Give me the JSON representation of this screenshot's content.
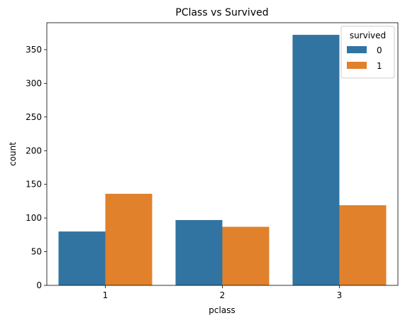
{
  "chart_data": {
    "type": "bar",
    "title": "PClass vs Survived",
    "xlabel": "pclass",
    "ylabel": "count",
    "categories": [
      "1",
      "2",
      "3"
    ],
    "series": [
      {
        "name": "0",
        "values": [
          80,
          97,
          372
        ],
        "color": "#3274a1"
      },
      {
        "name": "1",
        "values": [
          136,
          87,
          119
        ],
        "color": "#e1812c"
      }
    ],
    "ylim": [
      0,
      390
    ],
    "yticks": [
      0,
      50,
      100,
      150,
      200,
      250,
      300,
      350
    ],
    "legend": {
      "title": "survived",
      "placement": "top-right"
    },
    "grid": false
  }
}
